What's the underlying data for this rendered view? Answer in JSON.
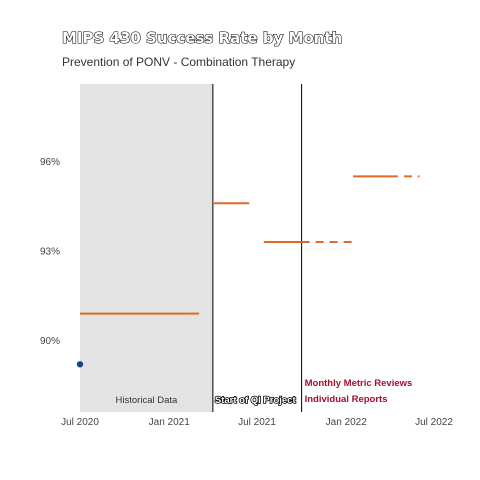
{
  "chart_data": {
    "type": "line",
    "title": "MIPS 430 Success Rate by Month",
    "subtitle": "Prevention of PONV - Combination Therapy",
    "x_tick_labels": [
      "Jul 2020",
      "Jan 2021",
      "Jul 2021",
      "Jan 2022",
      "Jul 2022"
    ],
    "x_ticks": [
      "2020-07-01",
      "2021-01-01",
      "2021-07-01",
      "2022-01-01",
      "2022-07-01"
    ],
    "y_tick_labels": [
      "90%",
      "93%",
      "96%"
    ],
    "y_ticks": [
      90,
      93,
      96
    ],
    "xlim": [
      "2020-07-01",
      "2022-07-01"
    ],
    "ylim": [
      87.6,
      98.6
    ],
    "points": [
      {
        "x": "2020-07-01",
        "y": 89.2
      }
    ],
    "center_lines": [
      {
        "x_start": "2020-07-01",
        "x_end": "2021-02-15",
        "y": 90.9,
        "style": "solid"
      },
      {
        "x_start": "2021-02-15",
        "x_end": "2021-03-15",
        "y": 90.9,
        "style": "dashed"
      },
      {
        "x_start": "2021-04-01",
        "x_end": "2021-06-15",
        "y": 94.6,
        "style": "solid"
      },
      {
        "x_start": "2021-07-15",
        "x_end": "2021-10-01",
        "y": 93.3,
        "style": "solid"
      },
      {
        "x_start": "2021-10-01",
        "x_end": "2022-01-15",
        "y": 93.3,
        "style": "dashed"
      },
      {
        "x_start": "2022-01-15",
        "x_end": "2022-04-01",
        "y": 95.5,
        "style": "solid"
      },
      {
        "x_start": "2022-04-01",
        "x_end": "2022-06-01",
        "y": 95.5,
        "style": "dashed"
      }
    ],
    "shaded_region": {
      "x_start": "2020-07-01",
      "x_end": "2021-04-01",
      "label": "Historical Data"
    },
    "phase_lines": [
      {
        "x": "2021-04-01",
        "label": "Start of QI Project"
      },
      {
        "x": "2021-10-01",
        "label_lines": [
          "Monthly Metric Reviews",
          "Individual Reports"
        ]
      }
    ],
    "grid": false,
    "colors": {
      "line": "#e06a26",
      "point": "#1f3f93",
      "shade": "#e3e3e3",
      "annotation_red": "#a50f2e"
    }
  }
}
